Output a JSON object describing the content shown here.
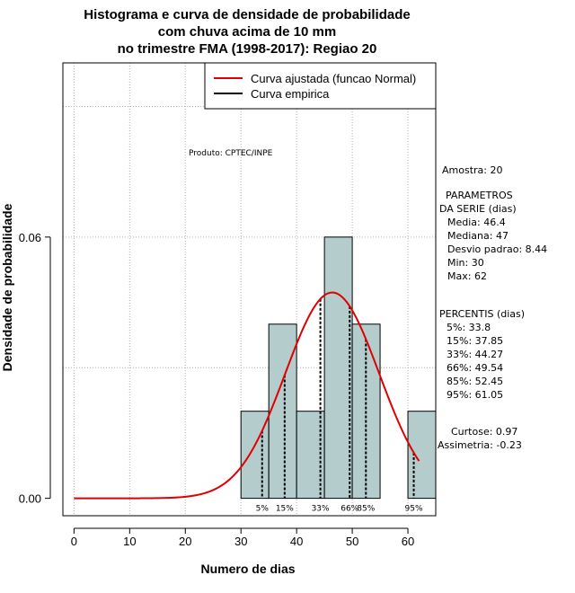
{
  "chart_data": {
    "type": "bar",
    "title_lines": [
      "Histograma e curva de densidade de probabilidade",
      "com chuva acima de 10 mm",
      "no trimestre FMA (1998-2017): Regiao 20"
    ],
    "xlabel": "Numero de dias",
    "ylabel": "Densidade de probabilidade",
    "xlim": [
      -2,
      65
    ],
    "ylim": [
      -0.004,
      0.1
    ],
    "x_ticks": [
      0,
      10,
      20,
      30,
      40,
      50,
      60
    ],
    "y_ticks": [
      0.0,
      0.06
    ],
    "y_tick_labels": [
      "0.00",
      "0.06"
    ],
    "bins": [
      {
        "from": 30,
        "to": 35,
        "density": 0.02
      },
      {
        "from": 35,
        "to": 40,
        "density": 0.04
      },
      {
        "from": 40,
        "to": 45,
        "density": 0.02
      },
      {
        "from": 45,
        "to": 50,
        "density": 0.06
      },
      {
        "from": 50,
        "to": 55,
        "density": 0.04
      },
      {
        "from": 55,
        "to": 60,
        "density": 0.0
      },
      {
        "from": 60,
        "to": 65,
        "density": 0.02
      }
    ],
    "normal_fit": {
      "mean": 46.4,
      "sd": 8.44,
      "x_from": 0,
      "x_to": 62
    },
    "percentile_lines": [
      {
        "label": "5%",
        "x": 33.8
      },
      {
        "label": "15%",
        "x": 37.85
      },
      {
        "label": "33%",
        "x": 44.27
      },
      {
        "label": "66%",
        "x": 49.54
      },
      {
        "label": "85%",
        "x": 52.45
      },
      {
        "label": "95%",
        "x": 61.05
      }
    ],
    "legend": {
      "position": "top-right",
      "entries": [
        {
          "label": "Curva ajustada (funcao Normal)",
          "color": "#ff0000"
        },
        {
          "label": "Curva empirica",
          "color": "#000000"
        }
      ]
    },
    "grid": true,
    "bar_color": "#b4cccc",
    "curve_color": "#e00000"
  },
  "annotation": {
    "product": "Produto: CPTEC/INPE"
  },
  "stats_panel": {
    "sample": "Amostra: 20",
    "params_title_1": "PARAMETROS",
    "params_title_2": "DA SERIE (dias)",
    "params": [
      "Media: 46.4",
      "Mediana: 47",
      "Desvio padrao: 8.44",
      "Min: 30",
      "Max: 62"
    ],
    "percentis_title": "PERCENTIS (dias)",
    "percentis": [
      "5%: 33.8",
      "15%: 37.85",
      "33%: 44.27",
      "66%: 49.54",
      "85%: 52.45",
      "95%: 61.05"
    ],
    "kurtosis": "Curtose: 0.97",
    "skewness": "Assimetria: -0.23"
  }
}
